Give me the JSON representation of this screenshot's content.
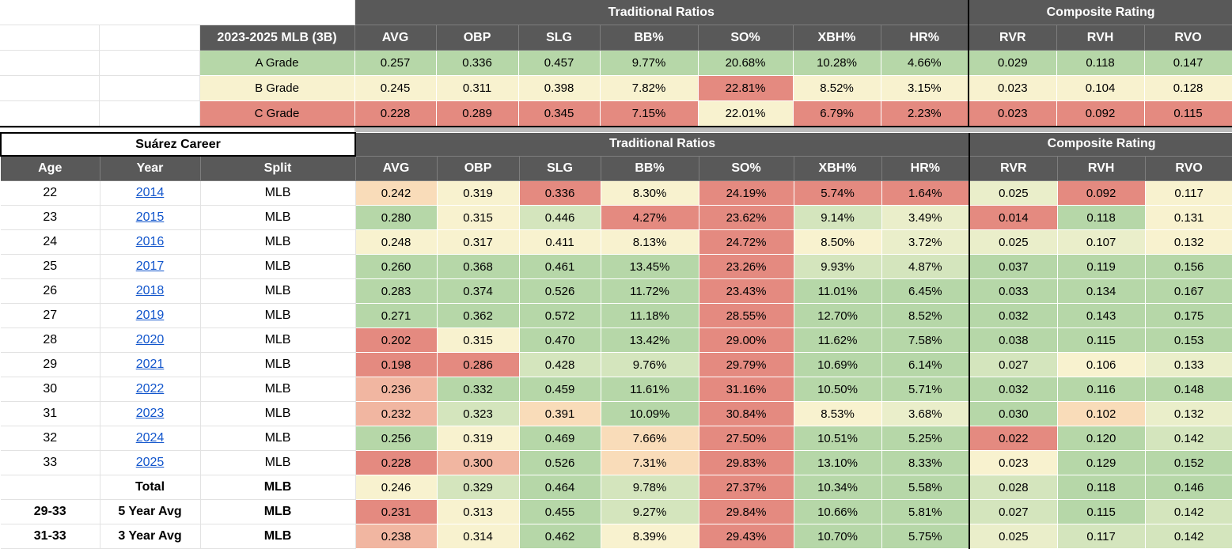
{
  "palette": {
    "G": "#b6d7a8",
    "LG": "#d4e5bd",
    "YG": "#eaeeca",
    "Y": "#f8f2cf",
    "P": "#f9dcb9",
    "S": "#f1b6a1",
    "R": "#e48a80"
  },
  "colors": {
    "header_bg": "#595959",
    "header_text": "#ffffff",
    "link": "#1155cc",
    "gridline": "#e2e2e2",
    "separator_band": "#bcbcbc",
    "group_divider": "#000000"
  },
  "grades": {
    "section_headers": {
      "traditional": "Traditional Ratios",
      "composite": "Composite Rating"
    },
    "label_header": "2023-2025 MLB (3B)",
    "stat_columns": [
      "AVG",
      "OBP",
      "SLG",
      "BB%",
      "SO%",
      "XBH%",
      "HR%",
      "RVR",
      "RVH",
      "RVO"
    ],
    "rows": [
      {
        "label": "A Grade",
        "label_color": "G",
        "values": [
          "0.257",
          "0.336",
          "0.457",
          "9.77%",
          "20.68%",
          "10.28%",
          "4.66%",
          "0.029",
          "0.118",
          "0.147"
        ],
        "colors": [
          "G",
          "G",
          "G",
          "G",
          "G",
          "G",
          "G",
          "G",
          "G",
          "G"
        ]
      },
      {
        "label": "B Grade",
        "label_color": "Y",
        "values": [
          "0.245",
          "0.311",
          "0.398",
          "7.82%",
          "22.81%",
          "8.52%",
          "3.15%",
          "0.023",
          "0.104",
          "0.128"
        ],
        "colors": [
          "Y",
          "Y",
          "Y",
          "Y",
          "R",
          "Y",
          "Y",
          "Y",
          "Y",
          "Y"
        ]
      },
      {
        "label": "C Grade",
        "label_color": "R",
        "values": [
          "0.228",
          "0.289",
          "0.345",
          "7.15%",
          "22.01%",
          "6.79%",
          "2.23%",
          "0.023",
          "0.092",
          "0.115"
        ],
        "colors": [
          "R",
          "R",
          "R",
          "R",
          "Y",
          "R",
          "R",
          "R",
          "R",
          "R"
        ]
      }
    ]
  },
  "career": {
    "title": "Suárez Career",
    "section_headers": {
      "traditional": "Traditional Ratios",
      "composite": "Composite Rating"
    },
    "columns": [
      "Age",
      "Year",
      "Split"
    ],
    "stat_columns": [
      "AVG",
      "OBP",
      "SLG",
      "BB%",
      "SO%",
      "XBH%",
      "HR%",
      "RVR",
      "RVH",
      "RVO"
    ],
    "rows": [
      {
        "age": "22",
        "year": "2014",
        "is_link": true,
        "split": "MLB",
        "bold": false,
        "values": [
          "0.242",
          "0.319",
          "0.336",
          "8.30%",
          "24.19%",
          "5.74%",
          "1.64%",
          "0.025",
          "0.092",
          "0.117"
        ],
        "colors": [
          "P",
          "Y",
          "R",
          "Y",
          "R",
          "R",
          "R",
          "YG",
          "R",
          "Y"
        ]
      },
      {
        "age": "23",
        "year": "2015",
        "is_link": true,
        "split": "MLB",
        "bold": false,
        "values": [
          "0.280",
          "0.315",
          "0.446",
          "4.27%",
          "23.62%",
          "9.14%",
          "3.49%",
          "0.014",
          "0.118",
          "0.131"
        ],
        "colors": [
          "G",
          "Y",
          "LG",
          "R",
          "R",
          "LG",
          "YG",
          "R",
          "G",
          "Y"
        ]
      },
      {
        "age": "24",
        "year": "2016",
        "is_link": true,
        "split": "MLB",
        "bold": false,
        "values": [
          "0.248",
          "0.317",
          "0.411",
          "8.13%",
          "24.72%",
          "8.50%",
          "3.72%",
          "0.025",
          "0.107",
          "0.132"
        ],
        "colors": [
          "Y",
          "Y",
          "Y",
          "Y",
          "R",
          "Y",
          "YG",
          "YG",
          "YG",
          "Y"
        ]
      },
      {
        "age": "25",
        "year": "2017",
        "is_link": true,
        "split": "MLB",
        "bold": false,
        "values": [
          "0.260",
          "0.368",
          "0.461",
          "13.45%",
          "23.26%",
          "9.93%",
          "4.87%",
          "0.037",
          "0.119",
          "0.156"
        ],
        "colors": [
          "G",
          "G",
          "G",
          "G",
          "R",
          "LG",
          "LG",
          "G",
          "G",
          "G"
        ]
      },
      {
        "age": "26",
        "year": "2018",
        "is_link": true,
        "split": "MLB",
        "bold": false,
        "values": [
          "0.283",
          "0.374",
          "0.526",
          "11.72%",
          "23.43%",
          "11.01%",
          "6.45%",
          "0.033",
          "0.134",
          "0.167"
        ],
        "colors": [
          "G",
          "G",
          "G",
          "G",
          "R",
          "G",
          "G",
          "G",
          "G",
          "G"
        ]
      },
      {
        "age": "27",
        "year": "2019",
        "is_link": true,
        "split": "MLB",
        "bold": false,
        "values": [
          "0.271",
          "0.362",
          "0.572",
          "11.18%",
          "28.55%",
          "12.70%",
          "8.52%",
          "0.032",
          "0.143",
          "0.175"
        ],
        "colors": [
          "G",
          "G",
          "G",
          "G",
          "R",
          "G",
          "G",
          "G",
          "G",
          "G"
        ]
      },
      {
        "age": "28",
        "year": "2020",
        "is_link": true,
        "split": "MLB",
        "bold": false,
        "values": [
          "0.202",
          "0.315",
          "0.470",
          "13.42%",
          "29.00%",
          "11.62%",
          "7.58%",
          "0.038",
          "0.115",
          "0.153"
        ],
        "colors": [
          "R",
          "Y",
          "G",
          "G",
          "R",
          "G",
          "G",
          "G",
          "G",
          "G"
        ]
      },
      {
        "age": "29",
        "year": "2021",
        "is_link": true,
        "split": "MLB",
        "bold": false,
        "values": [
          "0.198",
          "0.286",
          "0.428",
          "9.76%",
          "29.79%",
          "10.69%",
          "6.14%",
          "0.027",
          "0.106",
          "0.133"
        ],
        "colors": [
          "R",
          "R",
          "LG",
          "LG",
          "R",
          "G",
          "G",
          "LG",
          "Y",
          "YG"
        ]
      },
      {
        "age": "30",
        "year": "2022",
        "is_link": true,
        "split": "MLB",
        "bold": false,
        "values": [
          "0.236",
          "0.332",
          "0.459",
          "11.61%",
          "31.16%",
          "10.50%",
          "5.71%",
          "0.032",
          "0.116",
          "0.148"
        ],
        "colors": [
          "S",
          "G",
          "G",
          "G",
          "R",
          "G",
          "G",
          "G",
          "G",
          "G"
        ]
      },
      {
        "age": "31",
        "year": "2023",
        "is_link": true,
        "split": "MLB",
        "bold": false,
        "values": [
          "0.232",
          "0.323",
          "0.391",
          "10.09%",
          "30.84%",
          "8.53%",
          "3.68%",
          "0.030",
          "0.102",
          "0.132"
        ],
        "colors": [
          "S",
          "LG",
          "P",
          "G",
          "R",
          "Y",
          "YG",
          "G",
          "P",
          "YG"
        ]
      },
      {
        "age": "32",
        "year": "2024",
        "is_link": true,
        "split": "MLB",
        "bold": false,
        "values": [
          "0.256",
          "0.319",
          "0.469",
          "7.66%",
          "27.50%",
          "10.51%",
          "5.25%",
          "0.022",
          "0.120",
          "0.142"
        ],
        "colors": [
          "G",
          "Y",
          "G",
          "P",
          "R",
          "G",
          "G",
          "R",
          "G",
          "LG"
        ]
      },
      {
        "age": "33",
        "year": "2025",
        "is_link": true,
        "split": "MLB",
        "bold": false,
        "values": [
          "0.228",
          "0.300",
          "0.526",
          "7.31%",
          "29.83%",
          "13.10%",
          "8.33%",
          "0.023",
          "0.129",
          "0.152"
        ],
        "colors": [
          "R",
          "S",
          "G",
          "P",
          "R",
          "G",
          "G",
          "Y",
          "G",
          "G"
        ]
      },
      {
        "age": "",
        "year": "Total",
        "is_link": false,
        "split": "MLB",
        "bold": true,
        "values": [
          "0.246",
          "0.329",
          "0.464",
          "9.78%",
          "27.37%",
          "10.34%",
          "5.58%",
          "0.028",
          "0.118",
          "0.146"
        ],
        "colors": [
          "Y",
          "LG",
          "G",
          "LG",
          "R",
          "G",
          "G",
          "LG",
          "G",
          "G"
        ]
      },
      {
        "age": "29-33",
        "year": "5 Year Avg",
        "is_link": false,
        "split": "MLB",
        "bold": true,
        "values": [
          "0.231",
          "0.313",
          "0.455",
          "9.27%",
          "29.84%",
          "10.66%",
          "5.81%",
          "0.027",
          "0.115",
          "0.142"
        ],
        "colors": [
          "R",
          "Y",
          "G",
          "LG",
          "R",
          "G",
          "G",
          "LG",
          "G",
          "LG"
        ]
      },
      {
        "age": "31-33",
        "year": "3 Year Avg",
        "is_link": false,
        "split": "MLB",
        "bold": true,
        "values": [
          "0.238",
          "0.314",
          "0.462",
          "8.39%",
          "29.43%",
          "10.70%",
          "5.75%",
          "0.025",
          "0.117",
          "0.142"
        ],
        "colors": [
          "S",
          "Y",
          "G",
          "Y",
          "R",
          "G",
          "G",
          "YG",
          "LG",
          "LG"
        ]
      }
    ]
  }
}
